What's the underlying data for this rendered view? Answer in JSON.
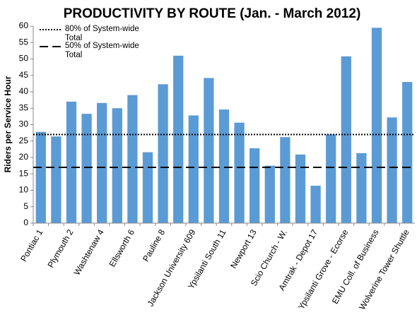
{
  "chart_data": {
    "type": "bar",
    "title": "PRODUCTIVITY BY ROUTE (Jan. - March 2012)",
    "y_label": "Riders per Service Hour",
    "categories": [
      "Pontiac 1",
      null,
      "Plymouth 2",
      null,
      "Washtenaw 4",
      null,
      "Ellsworth 6",
      null,
      "Pauline 8",
      null,
      "Jackson University 609",
      null,
      "Ypsilanti South 11",
      null,
      "Newport 13",
      null,
      "Scio Church - W.",
      null,
      "Amtrak - Depot 17",
      null,
      "Ypsilanti Grove - Ecorse",
      null,
      "EMU Coll. of Business",
      null,
      "Wolverine Tower Shuttle"
    ],
    "values": [
      27.8,
      26.4,
      37,
      33.3,
      36.6,
      35,
      39,
      21.6,
      42.3,
      51,
      32.8,
      44.2,
      34.6,
      30.6,
      22.8,
      17.5,
      26.2,
      20.9,
      11.4,
      27,
      50.8,
      21.3,
      59.5,
      32.2,
      43
    ],
    "color": "#5b9bd5",
    "reference_lines": [
      {
        "name": "80% of System-wide Total",
        "value": 27,
        "dash": "dotted"
      },
      {
        "name": "50% of System-wide Total",
        "value": 17,
        "dash": "dashed"
      }
    ],
    "ylim": [
      0,
      60
    ],
    "yticks": [
      0,
      5,
      10,
      15,
      20,
      25,
      30,
      35,
      40,
      45,
      50,
      55,
      60
    ],
    "grid": false
  }
}
